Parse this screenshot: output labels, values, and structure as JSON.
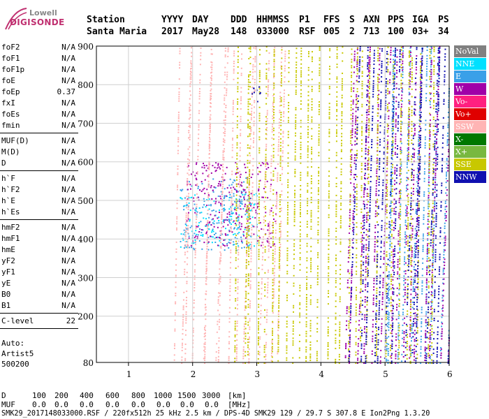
{
  "logo": {
    "line1": "Lowell",
    "line2": "DIGISONDE"
  },
  "header": {
    "columns": [
      {
        "label": "Station",
        "value": "Santa Maria"
      },
      {
        "label": "YYYY",
        "value": "2017"
      },
      {
        "label": "DAY",
        "value": "May28"
      },
      {
        "label": "DDD",
        "value": "148"
      },
      {
        "label": "HHMMSS",
        "value": "033000"
      },
      {
        "label": "P1",
        "value": "RSF"
      },
      {
        "label": "FFS",
        "value": "005"
      },
      {
        "label": "S",
        "value": "2"
      },
      {
        "label": "AXN",
        "value": "713"
      },
      {
        "label": "PPS",
        "value": "100"
      },
      {
        "label": "IGA",
        "value": "03+"
      },
      {
        "label": "PS",
        "value": "34"
      }
    ]
  },
  "params": [
    [
      {
        "label": "foF2",
        "value": "N/A"
      },
      {
        "label": "foF1",
        "value": "N/A"
      },
      {
        "label": "foF1p",
        "value": "N/A"
      },
      {
        "label": "foE",
        "value": "N/A"
      },
      {
        "label": "foEp",
        "value": "0.37"
      },
      {
        "label": "fxI",
        "value": "N/A"
      },
      {
        "label": "foEs",
        "value": "N/A"
      },
      {
        "label": "fmin",
        "value": "N/A"
      }
    ],
    [
      {
        "label": "MUF(D)",
        "value": "N/A"
      },
      {
        "label": "M(D)",
        "value": "N/A"
      },
      {
        "label": "D",
        "value": "N/A"
      }
    ],
    [
      {
        "label": "h`F",
        "value": "N/A"
      },
      {
        "label": "h`F2",
        "value": "N/A"
      },
      {
        "label": "h`E",
        "value": "N/A"
      },
      {
        "label": "h`Es",
        "value": "N/A"
      }
    ],
    [
      {
        "label": "hmF2",
        "value": "N/A"
      },
      {
        "label": "hmF1",
        "value": "N/A"
      },
      {
        "label": "hmE",
        "value": "N/A"
      },
      {
        "label": "yF2",
        "value": "N/A"
      },
      {
        "label": "yF1",
        "value": "N/A"
      },
      {
        "label": "yE",
        "value": "N/A"
      },
      {
        "label": "B0",
        "value": "N/A"
      },
      {
        "label": "B1",
        "value": "N/A"
      }
    ],
    [
      {
        "label": "C-level",
        "value": "22"
      }
    ]
  ],
  "auto": {
    "line1": "Auto:",
    "line2": "Artist5",
    "line3": "500200"
  },
  "legend": [
    {
      "label": "NoVal",
      "color": "#808080"
    },
    {
      "label": "NNE",
      "color": "#00e0ff"
    },
    {
      "label": "E",
      "color": "#3aa0e8"
    },
    {
      "label": "W",
      "color": "#a000a8"
    },
    {
      "label": "Vo-",
      "color": "#ff2080"
    },
    {
      "label": "Vo+",
      "color": "#e00000"
    },
    {
      "label": "SSW",
      "color": "#ffb4b4"
    },
    {
      "label": "X-",
      "color": "#007800"
    },
    {
      "label": "X+",
      "color": "#78b840"
    },
    {
      "label": "SSE",
      "color": "#c8c800"
    },
    {
      "label": "NNW",
      "color": "#1010b0"
    }
  ],
  "bottom": {
    "d_label": "D",
    "d_values": [
      "100",
      "200",
      "400",
      "600",
      "800",
      "1000",
      "1500",
      "3000"
    ],
    "d_unit": "[km]",
    "muf_label": "MUF",
    "muf_values": [
      "0.0",
      "0.0",
      "0.0",
      "0.0",
      "0.0",
      "0.0",
      "0.0",
      "0.0"
    ],
    "muf_unit": "[MHz]",
    "footer": "SMK29_2017148033000.RSF / 220fx512h 25 kHz 2.5 km / DPS-4D SMK29 129 / 29.7 S 307.8 E Ion2Png 1.3.20"
  },
  "chart_data": {
    "type": "scatter",
    "xlim": [
      0.5,
      6.0
    ],
    "ylim": [
      80,
      900
    ],
    "xticks": [
      1,
      2,
      3,
      4,
      5,
      6
    ],
    "yticks": [
      80,
      200,
      300,
      400,
      500,
      600,
      700,
      800,
      900
    ],
    "grid": true,
    "series": [
      {
        "name": "NNE",
        "color": "#00e0ff",
        "regions": [
          [
            1.8,
            3.0,
            380,
            520
          ]
        ]
      },
      {
        "name": "E",
        "color": "#3aa0e8",
        "regions": [
          [
            1.8,
            2.9,
            370,
            560
          ],
          [
            4.9,
            6.0,
            80,
            900
          ]
        ]
      },
      {
        "name": "W",
        "color": "#a000a8",
        "regions": [
          [
            1.9,
            3.3,
            380,
            600
          ],
          [
            4.3,
            6.0,
            80,
            900
          ]
        ]
      },
      {
        "name": "SSW",
        "color": "#ffb4b4",
        "regions": [
          [
            1.6,
            3.4,
            80,
            900
          ]
        ]
      },
      {
        "name": "SSE",
        "color": "#c8c800",
        "regions": [
          [
            2.6,
            5.8,
            80,
            900
          ]
        ]
      },
      {
        "name": "NNW",
        "color": "#1010b0",
        "regions": [
          [
            4.4,
            6.0,
            80,
            900
          ],
          [
            2.9,
            3.1,
            750,
            800
          ]
        ]
      }
    ]
  }
}
